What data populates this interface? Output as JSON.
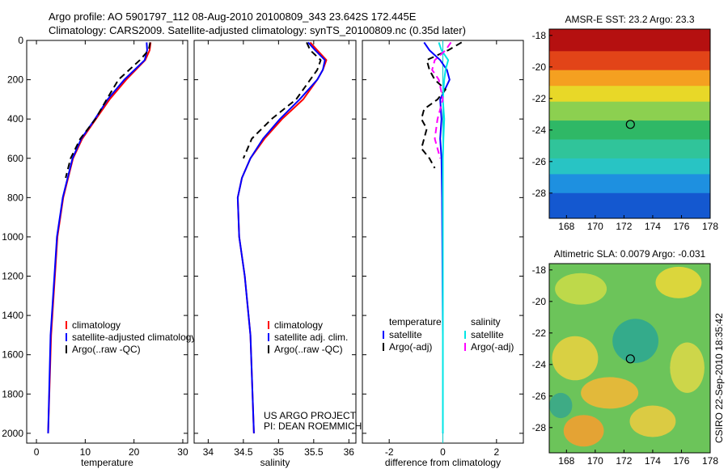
{
  "title": {
    "line1": "Argo profile: AO 5901797_112 08-Aug-2010 20100809_343 23.642S 172.445E",
    "line2": "Climatology: CARS2009. Satellite-adjusted climatology: synTS_20100809.nc (0.35d later)"
  },
  "project": {
    "line1": "US ARGO PROJECT",
    "line2": "PI: DEAN ROEMMICH"
  },
  "side_label": "CSIRO 22-Sep-2010 18:35:42",
  "colors": {
    "climatology": "#ff0000",
    "satellite": "#0000ff",
    "argo": "#000000",
    "sat_salinity": "#00e5e5",
    "argo_salinity": "#ff00ff"
  },
  "chart_data": [
    {
      "type": "line",
      "xlabel": "temperature",
      "ylabel": "",
      "xlim": [
        -2,
        31
      ],
      "ylim": [
        2050,
        0
      ],
      "xticks": [
        "0",
        "10",
        "20",
        "30"
      ],
      "yticks": [
        "0",
        "200",
        "400",
        "600",
        "800",
        "1000",
        "1200",
        "1400",
        "1600",
        "1800",
        "2000"
      ],
      "legend": [
        "climatology",
        "satellite-adjusted climatology",
        "Argo(..raw -QC)"
      ],
      "series": [
        {
          "name": "climatology",
          "y": [
            10,
            50,
            100,
            200,
            300,
            400,
            500,
            600,
            800,
            1000,
            1500,
            2000
          ],
          "values": [
            23.4,
            23.2,
            22.3,
            18.4,
            15.0,
            12.2,
            9.4,
            7.5,
            5.5,
            4.3,
            3.0,
            2.4
          ]
        },
        {
          "name": "satellite-adjusted climatology",
          "y": [
            10,
            50,
            100,
            200,
            300,
            400,
            500,
            600,
            800,
            1000,
            1500,
            2000
          ],
          "values": [
            22.6,
            22.7,
            22.2,
            18.0,
            14.6,
            12.0,
            9.2,
            7.4,
            5.4,
            4.2,
            2.9,
            2.4
          ]
        },
        {
          "name": "Argo(..raw -QC)",
          "y": [
            10,
            50,
            100,
            200,
            300,
            400,
            500,
            600,
            700
          ],
          "values": [
            23.3,
            23.0,
            21.2,
            16.8,
            14.4,
            12.1,
            9.0,
            7.0,
            6.0
          ]
        }
      ]
    },
    {
      "type": "line",
      "xlabel": "salinity",
      "ylabel": "",
      "xlim": [
        33.8,
        36.1
      ],
      "ylim": [
        2050,
        0
      ],
      "xticks": [
        "34",
        "34.5",
        "35",
        "35.5",
        "36"
      ],
      "yticks": [],
      "legend": [
        "climatology",
        "satellite adj. clim.",
        "Argo(..raw -QC)"
      ],
      "series": [
        {
          "name": "climatology",
          "y": [
            10,
            50,
            100,
            150,
            200,
            300,
            400,
            500,
            600,
            700,
            800,
            1000,
            1200,
            1500,
            2000
          ],
          "values": [
            35.45,
            35.55,
            35.68,
            35.63,
            35.55,
            35.35,
            35.05,
            34.8,
            34.6,
            34.48,
            34.42,
            34.44,
            34.52,
            34.6,
            34.65
          ]
        },
        {
          "name": "satellite adj. clim.",
          "y": [
            10,
            50,
            100,
            150,
            200,
            300,
            400,
            500,
            600,
            700,
            800,
            1000,
            1200,
            1500,
            2000
          ],
          "values": [
            35.42,
            35.52,
            35.66,
            35.63,
            35.55,
            35.3,
            35.02,
            34.78,
            34.6,
            34.48,
            34.42,
            34.44,
            34.52,
            34.6,
            34.65
          ]
        },
        {
          "name": "Argo(..raw -QC)",
          "y": [
            10,
            50,
            100,
            150,
            200,
            300,
            400,
            500,
            600
          ],
          "values": [
            35.4,
            35.45,
            35.6,
            35.55,
            35.45,
            35.25,
            34.9,
            34.62,
            34.5
          ]
        }
      ]
    },
    {
      "type": "line",
      "xlabel": "difference from climatology",
      "ylabel": "",
      "xlim": [
        -3,
        3
      ],
      "ylim": [
        2050,
        0
      ],
      "xticks": [
        "-2",
        "0",
        "2"
      ],
      "yticks": [],
      "legend_temperature": [
        "temperature",
        "satellite",
        "Argo(-adj)"
      ],
      "legend_salinity": [
        "salinity",
        "satellite",
        "Argo(-adj)"
      ],
      "series": [
        {
          "name": "temperature satellite",
          "y": [
            10,
            50,
            100,
            150,
            200,
            300,
            400,
            500,
            600,
            800,
            1000,
            1500,
            2000
          ],
          "values": [
            -0.7,
            -0.5,
            -0.1,
            0.15,
            0.25,
            -0.1,
            -0.05,
            -0.1,
            -0.05,
            -0.03,
            -0.02,
            0.0,
            0.0
          ]
        },
        {
          "name": "temperature Argo(-adj)",
          "y": [
            10,
            50,
            100,
            150,
            200,
            250,
            300,
            350,
            400,
            450,
            500,
            550,
            600,
            650
          ],
          "values": [
            0.7,
            0.2,
            -0.6,
            -0.5,
            -0.3,
            0.1,
            -0.2,
            -0.7,
            -0.8,
            -0.6,
            -0.7,
            -0.8,
            -0.5,
            -0.3
          ]
        },
        {
          "name": "salinity satellite",
          "y": [
            10,
            50,
            100,
            150,
            200,
            300,
            400,
            500,
            600,
            800,
            1000,
            1500,
            2000
          ],
          "values": [
            -0.15,
            -0.05,
            0.2,
            0.1,
            0.05,
            0.0,
            0.05,
            0.02,
            0.0,
            0.0,
            0.0,
            0.0,
            0.0
          ]
        },
        {
          "name": "salinity Argo(-adj)",
          "y": [
            10,
            50,
            100,
            150,
            200,
            300,
            400,
            500,
            600
          ],
          "values": [
            0.3,
            0.1,
            -0.3,
            -0.4,
            -0.15,
            0.0,
            -0.2,
            -0.3,
            -0.1
          ]
        }
      ]
    },
    {
      "type": "heatmap",
      "title": "AMSR-E SST: 23.2 Argo: 23.3",
      "xlim": [
        166.8,
        178
      ],
      "ylim": [
        -29.6,
        -17.6
      ],
      "xticks": [
        "168",
        "170",
        "172",
        "174",
        "176",
        "178"
      ],
      "yticks": [
        "-18",
        "-20",
        "-22",
        "-24",
        "-26",
        "-28"
      ],
      "marker": {
        "lon": 172.445,
        "lat": -23.642
      },
      "bands": [
        {
          "lat": -17.6,
          "color": "#b51010"
        },
        {
          "lat": -19.0,
          "color": "#e24418"
        },
        {
          "lat": -20.2,
          "color": "#f5a020"
        },
        {
          "lat": -21.2,
          "color": "#e8d828"
        },
        {
          "lat": -22.2,
          "color": "#8cd050"
        },
        {
          "lat": -23.4,
          "color": "#2fb866"
        },
        {
          "lat": -24.6,
          "color": "#30c49a"
        },
        {
          "lat": -25.8,
          "color": "#28c4c4"
        },
        {
          "lat": -26.8,
          "color": "#1e90e0"
        },
        {
          "lat": -28.0,
          "color": "#1458d0"
        },
        {
          "lat": -29.6,
          "color": "#0a30a8"
        }
      ]
    },
    {
      "type": "heatmap",
      "title": "Altimetric SLA: 0.0079 Argo: -0.031",
      "xlim": [
        166.8,
        178
      ],
      "ylim": [
        -29.6,
        -17.6
      ],
      "xticks": [
        "168",
        "170",
        "172",
        "174",
        "176",
        "178"
      ],
      "yticks": [
        "-18",
        "-20",
        "-22",
        "-24",
        "-26",
        "-28"
      ],
      "marker": {
        "lon": 172.445,
        "lat": -23.642
      },
      "background": "#6cc45a",
      "blobs": [
        {
          "lon": 172.8,
          "lat": -22.5,
          "rlon": 1.6,
          "rlat": 1.4,
          "color": "#2fa890"
        },
        {
          "lon": 169.0,
          "lat": -19.2,
          "rlon": 1.8,
          "rlat": 1.0,
          "color": "#c8dc48"
        },
        {
          "lon": 175.8,
          "lat": -18.8,
          "rlon": 1.6,
          "rlat": 1.0,
          "color": "#e8d838"
        },
        {
          "lon": 168.6,
          "lat": -23.6,
          "rlon": 1.6,
          "rlat": 1.4,
          "color": "#e6d240"
        },
        {
          "lon": 171.0,
          "lat": -25.8,
          "rlon": 2.0,
          "rlat": 1.0,
          "color": "#f0b836"
        },
        {
          "lon": 176.4,
          "lat": -24.2,
          "rlon": 1.2,
          "rlat": 1.6,
          "color": "#d8d848"
        },
        {
          "lon": 169.2,
          "lat": -28.2,
          "rlon": 1.4,
          "rlat": 1.0,
          "color": "#f2a030"
        },
        {
          "lon": 174.0,
          "lat": -27.6,
          "rlon": 1.6,
          "rlat": 1.0,
          "color": "#e8cc40"
        },
        {
          "lon": 167.6,
          "lat": -26.6,
          "rlon": 0.8,
          "rlat": 0.8,
          "color": "#3aa88a"
        }
      ]
    }
  ]
}
